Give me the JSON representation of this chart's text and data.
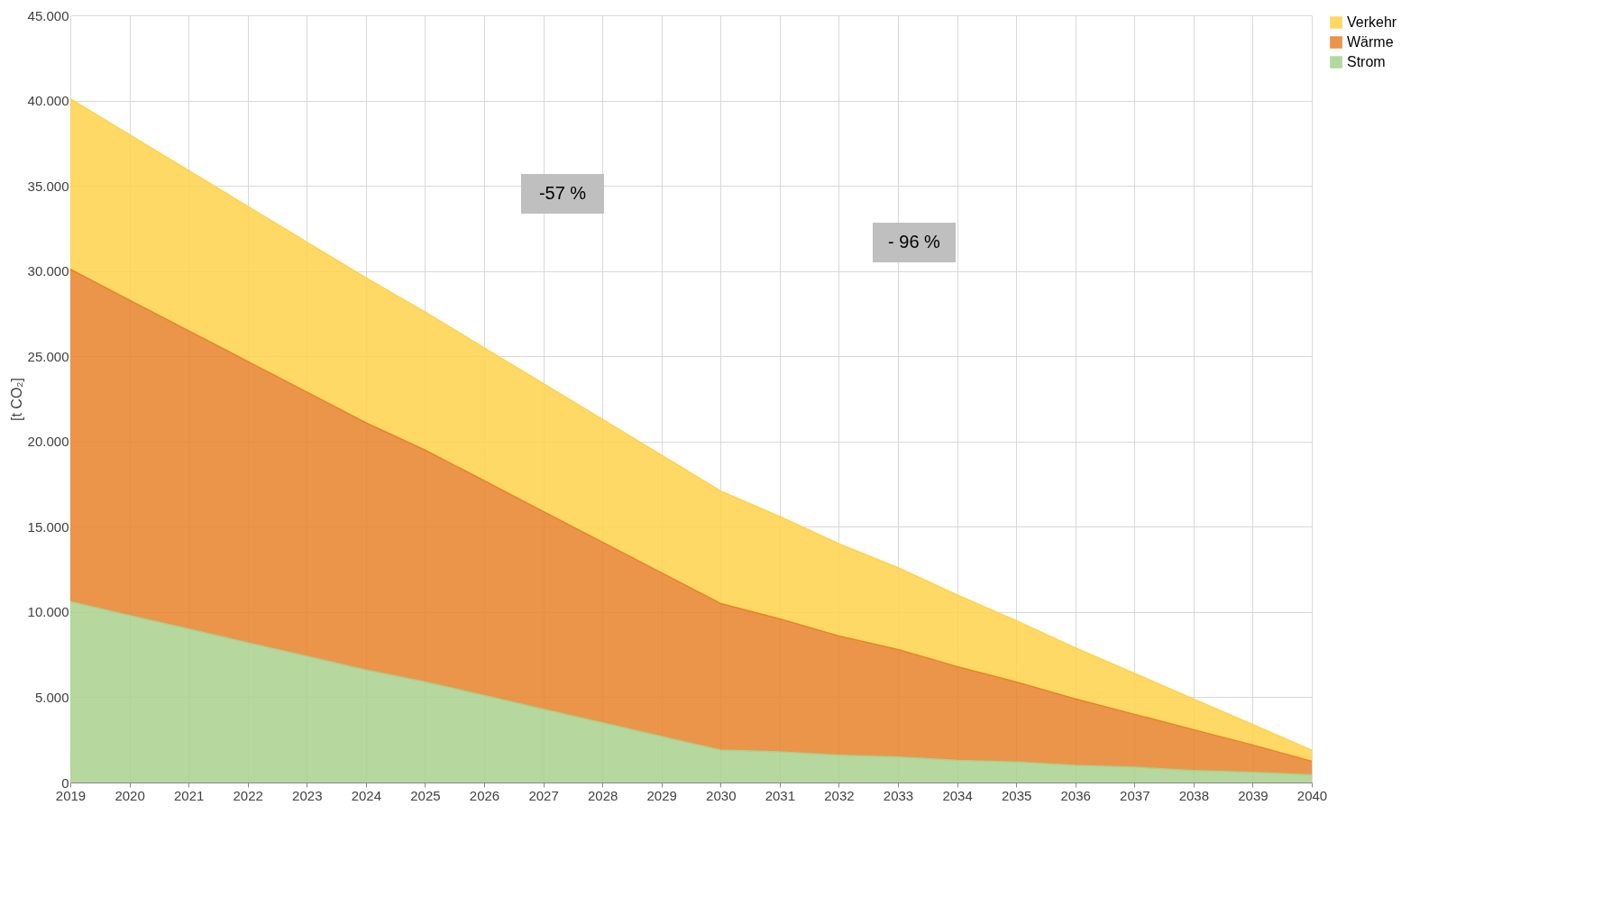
{
  "chart_data": {
    "type": "area",
    "stacked": true,
    "ylabel": "[t CO₂]",
    "x": [
      2019,
      2020,
      2021,
      2022,
      2023,
      2024,
      2025,
      2026,
      2027,
      2028,
      2029,
      2030,
      2031,
      2032,
      2033,
      2034,
      2035,
      2036,
      2037,
      2038,
      2039,
      2040
    ],
    "series": [
      {
        "name": "Strom",
        "color": "#a9d18e",
        "values": [
          10600,
          9800,
          9000,
          8200,
          7400,
          6600,
          5900,
          5100,
          4300,
          3500,
          2700,
          1900,
          1800,
          1600,
          1500,
          1300,
          1200,
          1000,
          900,
          700,
          600,
          450
        ]
      },
      {
        "name": "Wärme",
        "color": "#e8822a",
        "values": [
          19500,
          18500,
          17500,
          16500,
          15500,
          14500,
          13600,
          12600,
          11600,
          10600,
          9600,
          8600,
          7800,
          7000,
          6300,
          5500,
          4700,
          3900,
          3100,
          2400,
          1600,
          800
        ]
      },
      {
        "name": "Verkehr",
        "color": "#ffd24a",
        "values": [
          10000,
          9700,
          9400,
          9100,
          8800,
          8500,
          8100,
          7800,
          7500,
          7200,
          6900,
          6600,
          6000,
          5400,
          4800,
          4200,
          3600,
          3000,
          2400,
          1800,
          1200,
          650
        ]
      }
    ],
    "xlim": [
      2019,
      2040
    ],
    "xticks": [
      2019,
      2020,
      2021,
      2022,
      2023,
      2024,
      2025,
      2026,
      2027,
      2028,
      2029,
      2030,
      2031,
      2032,
      2033,
      2034,
      2035,
      2036,
      2037,
      2038,
      2039,
      2040
    ],
    "ylim": [
      0,
      45000
    ],
    "yticks": [
      0,
      {
        "value": 5000,
        "label": "5.000"
      },
      {
        "value": 10000,
        "label": "10.000"
      },
      {
        "value": 15000,
        "label": "15.000"
      },
      {
        "value": 20000,
        "label": "20.000"
      },
      {
        "value": 25000,
        "label": "25.000"
      },
      {
        "value": 30000,
        "label": "30.000"
      },
      {
        "value": 35000,
        "label": "35.000"
      },
      {
        "value": 40000,
        "label": "40.000"
      },
      {
        "value": 45000,
        "label": "45.000"
      }
    ],
    "grid": true,
    "legend": "right",
    "annotations": [
      "-57 %",
      "- 96 %"
    ]
  }
}
